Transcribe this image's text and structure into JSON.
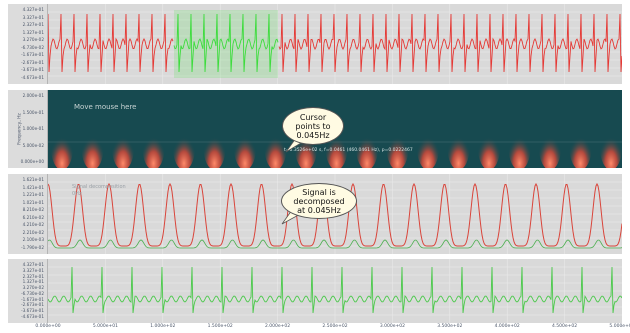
{
  "panels": {
    "raw": {
      "yticks": [
        "4.327e-01",
        "3.327e-01",
        "2.327e-01",
        "1.327e-01",
        "3.270e-02",
        "-6.730e-02",
        "-1.673e-01",
        "-2.673e-01",
        "-3.673e-01",
        "-4.673e-01"
      ],
      "color": "#e53935",
      "selection_color": "#3ddc3d"
    },
    "spectrogram": {
      "yticks": [
        "2.000e-01",
        "1.500e-01",
        "1.000e-01",
        "5.000e-02",
        "0.000e+00"
      ],
      "ylabel": "Frequency, Hz",
      "hint": "Move mouse here",
      "readout": "t=0.3526e+02 s, f=0.0461 (460.0461 Hz), p=0.0222467",
      "bg": "#174a50"
    },
    "decomposed": {
      "yticks": [
        "1.621e-01",
        "1.421e-01",
        "1.221e-01",
        "1.021e-01",
        "8.210e-02",
        "6.210e-02",
        "4.210e-02",
        "2.210e-02",
        "2.100e-03",
        "-1.790e-02"
      ],
      "sublabel_1": "Signal decomposition",
      "sublabel_2": "0Hz",
      "red": "#d9453b",
      "green": "#4caf50"
    },
    "reconstructed": {
      "yticks": [
        "4.327e-01",
        "3.327e-01",
        "2.327e-01",
        "1.327e-01",
        "3.270e-02",
        "-6.730e-02",
        "-1.673e-01",
        "-2.673e-01",
        "-3.673e-01",
        "-4.673e-01"
      ],
      "color": "#4cc94c"
    }
  },
  "callouts": {
    "cursor": [
      "Cursor",
      "points to",
      "0.045Hz"
    ],
    "signal": [
      "Signal is",
      "decomposed",
      "at 0.045Hz"
    ]
  },
  "xaxis": {
    "ticks": [
      "0.000e+00",
      "5.000e+01",
      "1.000e+02",
      "1.500e+02",
      "2.000e+02",
      "2.500e+02",
      "3.000e+02",
      "3.500e+02",
      "4.000e+02",
      "4.500e+02",
      "5.000e+02"
    ]
  }
}
